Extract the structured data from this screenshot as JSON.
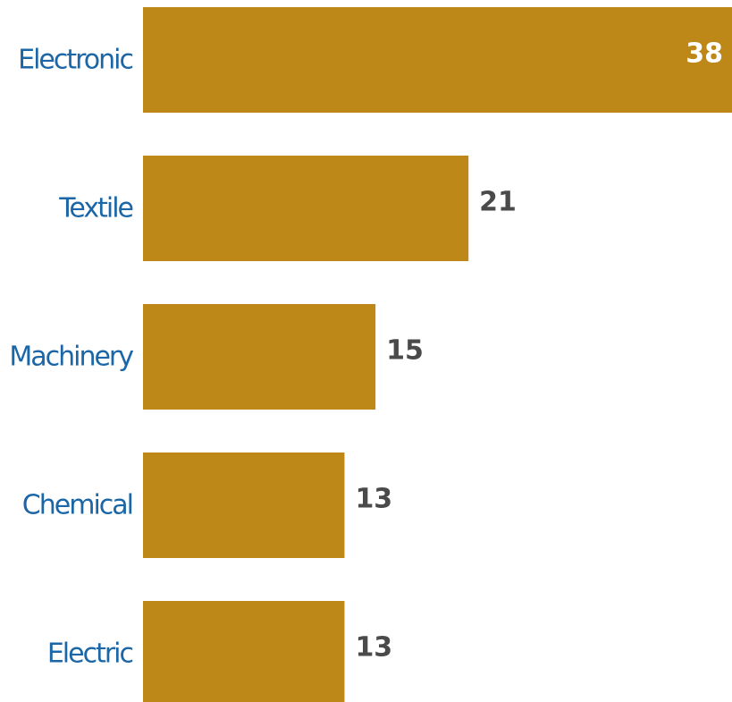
{
  "chart_data": {
    "type": "bar",
    "orientation": "horizontal",
    "categories": [
      "Electronic",
      "Textile",
      "Machinery",
      "Chemical",
      "Electric"
    ],
    "values": [
      38,
      21,
      15,
      13,
      13
    ],
    "value_labels": [
      "38",
      "21",
      "15",
      "13",
      "13"
    ],
    "xlim": [
      0,
      38
    ],
    "grid": false,
    "legend": "none"
  },
  "colors": {
    "bar": "#BE8819",
    "category_label": "#1A66A6",
    "value_label_outside": "#4A4A4A",
    "value_label_inside": "#FFFFFF"
  }
}
